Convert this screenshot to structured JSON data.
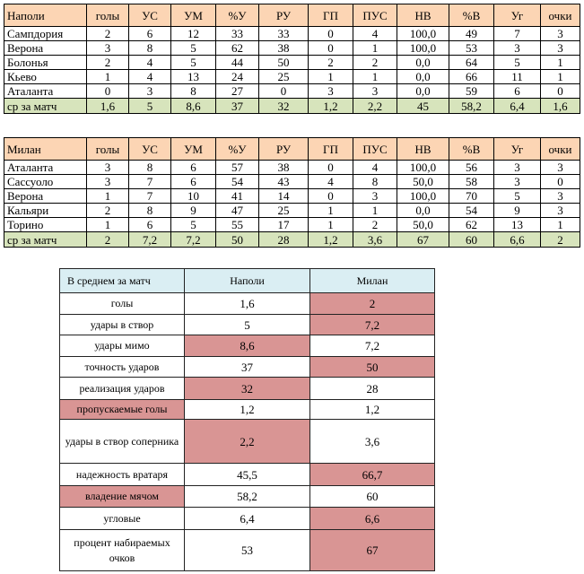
{
  "table1": {
    "header": [
      "Наполи",
      "голы",
      "УС",
      "УМ",
      "%У",
      "РУ",
      "ГП",
      "ПУС",
      "НВ",
      "%В",
      "Уг",
      "очки"
    ],
    "rows": [
      [
        "Сампдория",
        "2",
        "6",
        "12",
        "33",
        "33",
        "0",
        "4",
        "100,0",
        "49",
        "7",
        "3"
      ],
      [
        "Верона",
        "3",
        "8",
        "5",
        "62",
        "38",
        "0",
        "1",
        "100,0",
        "53",
        "3",
        "3"
      ],
      [
        "Болонья",
        "2",
        "4",
        "5",
        "44",
        "50",
        "2",
        "2",
        "0,0",
        "64",
        "5",
        "1"
      ],
      [
        "Кьево",
        "1",
        "4",
        "13",
        "24",
        "25",
        "1",
        "1",
        "0,0",
        "66",
        "11",
        "1"
      ],
      [
        "Аталанта",
        "0",
        "3",
        "8",
        "27",
        "0",
        "3",
        "3",
        "0,0",
        "59",
        "6",
        "0"
      ]
    ],
    "total": [
      "ср за матч",
      "1,6",
      "5",
      "8,6",
      "37",
      "32",
      "1,2",
      "2,2",
      "45",
      "58,2",
      "6,4",
      "1,6"
    ]
  },
  "table2": {
    "header": [
      "Милан",
      "голы",
      "УС",
      "УМ",
      "%У",
      "РУ",
      "ГП",
      "ПУС",
      "НВ",
      "%В",
      "Уг",
      "очки"
    ],
    "rows": [
      [
        "Аталанта",
        "3",
        "8",
        "6",
        "57",
        "38",
        "0",
        "4",
        "100,0",
        "56",
        "3",
        "3"
      ],
      [
        "Сассуоло",
        "3",
        "7",
        "6",
        "54",
        "43",
        "4",
        "8",
        "50,0",
        "58",
        "3",
        "0"
      ],
      [
        "Верона",
        "1",
        "7",
        "10",
        "41",
        "14",
        "0",
        "3",
        "100,0",
        "70",
        "5",
        "3"
      ],
      [
        "Кальяри",
        "2",
        "8",
        "9",
        "47",
        "25",
        "1",
        "1",
        "0,0",
        "54",
        "9",
        "3"
      ],
      [
        "Торино",
        "1",
        "6",
        "5",
        "55",
        "17",
        "1",
        "2",
        "50,0",
        "62",
        "13",
        "1"
      ]
    ],
    "total": [
      "ср за матч",
      "2",
      "7,2",
      "7,2",
      "50",
      "28",
      "1,2",
      "3,6",
      "67",
      "60",
      "6,6",
      "2"
    ]
  },
  "comparison": {
    "header": [
      "В среднем за матч",
      "Наполи",
      "Милан"
    ],
    "rows": [
      [
        "голы",
        "1,6",
        "2"
      ],
      [
        "удары в створ",
        "5",
        "7,2"
      ],
      [
        "удары мимо",
        "8,6",
        "7,2"
      ],
      [
        "точность ударов",
        "37",
        "50"
      ],
      [
        "реализация ударов",
        "32",
        "28"
      ],
      [
        "пропускаемые голы",
        "1,2",
        "1,2"
      ],
      [
        "удары в створ соперника",
        "2,2",
        "3,6"
      ],
      [
        "надежность вратаря",
        "45,5",
        "66,7"
      ],
      [
        "владение мячом",
        "58,2",
        "60"
      ],
      [
        "угловые",
        "6,4",
        "6,6"
      ],
      [
        "процент набираемых очков",
        "53",
        "67"
      ]
    ]
  }
}
